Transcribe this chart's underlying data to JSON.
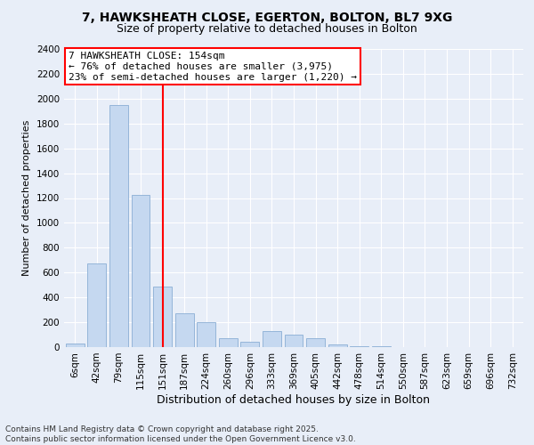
{
  "title_line1": "7, HAWKSHEATH CLOSE, EGERTON, BOLTON, BL7 9XG",
  "title_line2": "Size of property relative to detached houses in Bolton",
  "xlabel": "Distribution of detached houses by size in Bolton",
  "ylabel": "Number of detached properties",
  "categories": [
    "6sqm",
    "42sqm",
    "79sqm",
    "115sqm",
    "151sqm",
    "187sqm",
    "224sqm",
    "260sqm",
    "296sqm",
    "333sqm",
    "369sqm",
    "405sqm",
    "442sqm",
    "478sqm",
    "514sqm",
    "550sqm",
    "587sqm",
    "623sqm",
    "659sqm",
    "696sqm",
    "732sqm"
  ],
  "values": [
    30,
    675,
    1950,
    1225,
    490,
    275,
    200,
    75,
    45,
    130,
    100,
    75,
    20,
    10,
    5,
    3,
    2,
    2,
    0,
    0,
    0
  ],
  "bar_color": "#c5d8f0",
  "bar_edge_color": "#8aaed4",
  "vline_x": 4,
  "vline_color": "red",
  "annotation_text": "7 HAWKSHEATH CLOSE: 154sqm\n← 76% of detached houses are smaller (3,975)\n23% of semi-detached houses are larger (1,220) →",
  "annotation_box_facecolor": "white",
  "annotation_box_edgecolor": "red",
  "ylim": [
    0,
    2400
  ],
  "ytick_step": 200,
  "footer_line1": "Contains HM Land Registry data © Crown copyright and database right 2025.",
  "footer_line2": "Contains public sector information licensed under the Open Government Licence v3.0.",
  "bg_color": "#e8eef8",
  "plot_bg_color": "#e8eef8",
  "title_fontsize": 10,
  "subtitle_fontsize": 9,
  "xlabel_fontsize": 9,
  "ylabel_fontsize": 8,
  "tick_fontsize": 7.5,
  "footer_fontsize": 6.5,
  "annot_fontsize": 8
}
